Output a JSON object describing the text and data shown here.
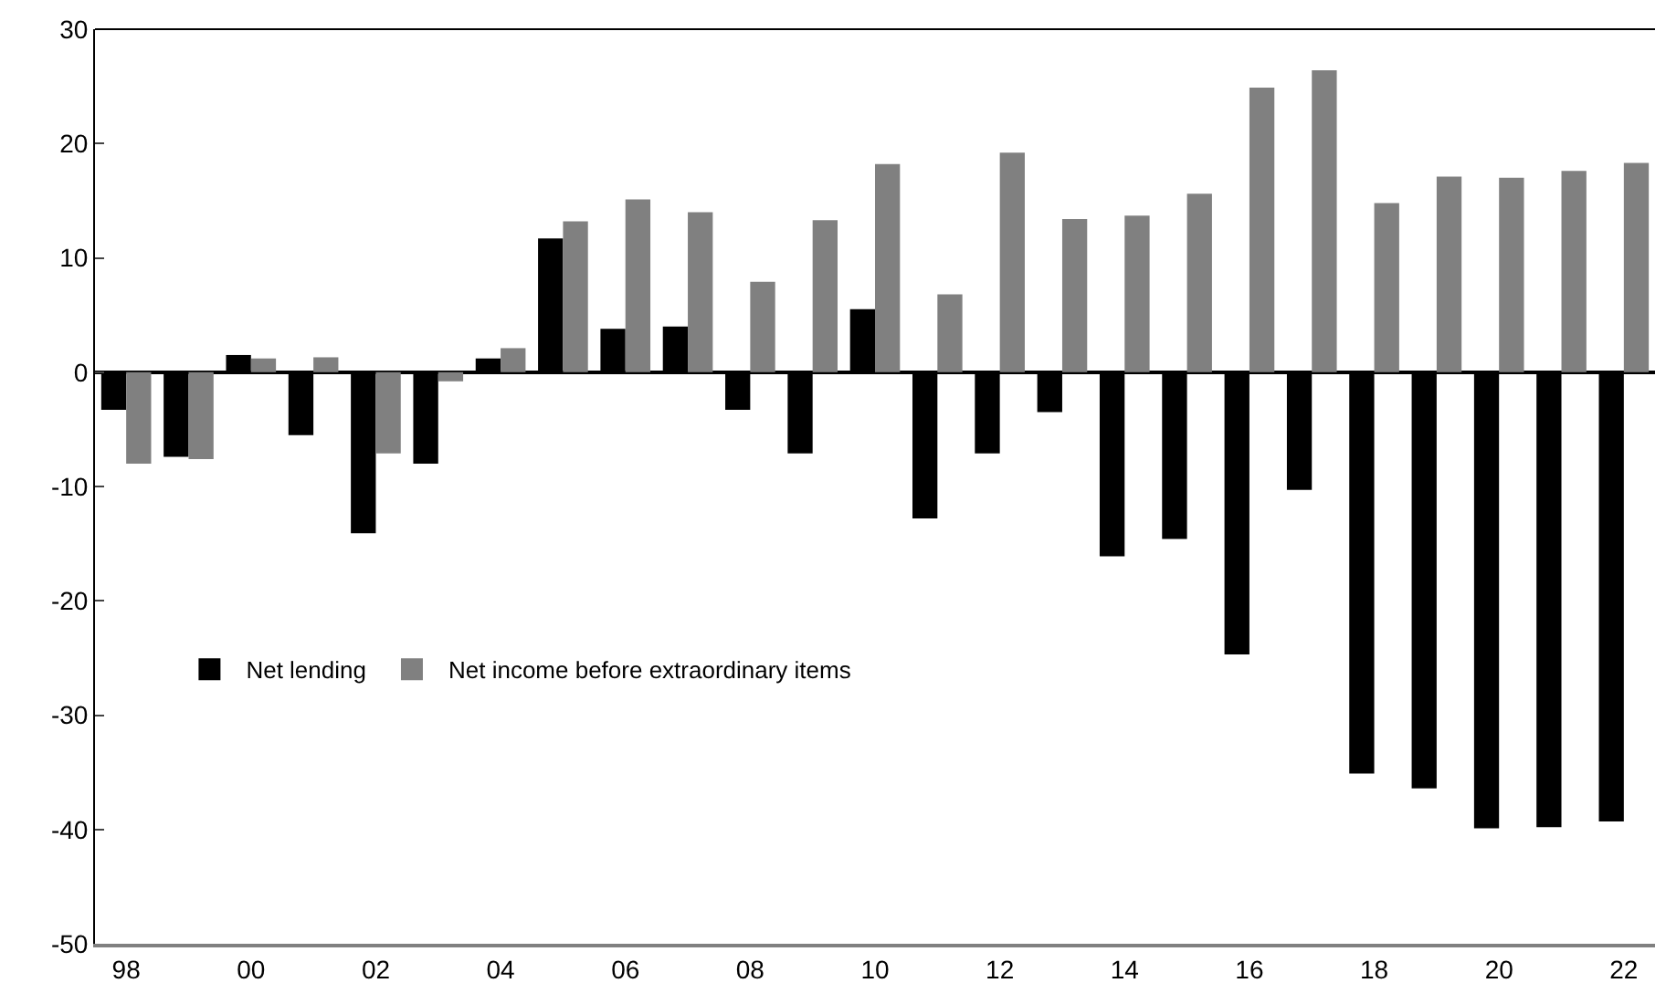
{
  "chart_data": {
    "type": "bar",
    "categories": [
      "98",
      null,
      "00",
      null,
      "02",
      null,
      "04",
      null,
      "06",
      null,
      "08",
      null,
      "10",
      null,
      "12",
      null,
      "14",
      null,
      "16",
      null,
      "18",
      null,
      "20",
      null,
      "22"
    ],
    "series": [
      {
        "name": "Net lending",
        "color": "#000000",
        "values": [
          -3.3,
          -7.4,
          1.5,
          -5.5,
          -14.1,
          -8.0,
          1.2,
          11.7,
          3.8,
          4.0,
          -3.3,
          -7.1,
          5.5,
          -12.8,
          -7.1,
          -3.5,
          -16.1,
          -14.6,
          -24.7,
          -10.3,
          -35.1,
          -36.4,
          -39.9,
          -39.8,
          -39.3
        ]
      },
      {
        "name": "Net income before extraordinary items",
        "color": "#808080",
        "values": [
          -8.0,
          -7.6,
          1.2,
          1.3,
          -7.1,
          -0.8,
          2.1,
          13.2,
          15.1,
          14.0,
          7.9,
          13.3,
          18.2,
          6.8,
          19.2,
          13.4,
          13.7,
          15.6,
          24.9,
          26.4,
          14.8,
          17.1,
          17.0,
          17.6,
          18.3
        ]
      }
    ],
    "ylim": [
      -50,
      30
    ],
    "yticks": [
      -50,
      -40,
      -30,
      -20,
      -10,
      0,
      10,
      20,
      30
    ],
    "legend": "bottom left"
  }
}
